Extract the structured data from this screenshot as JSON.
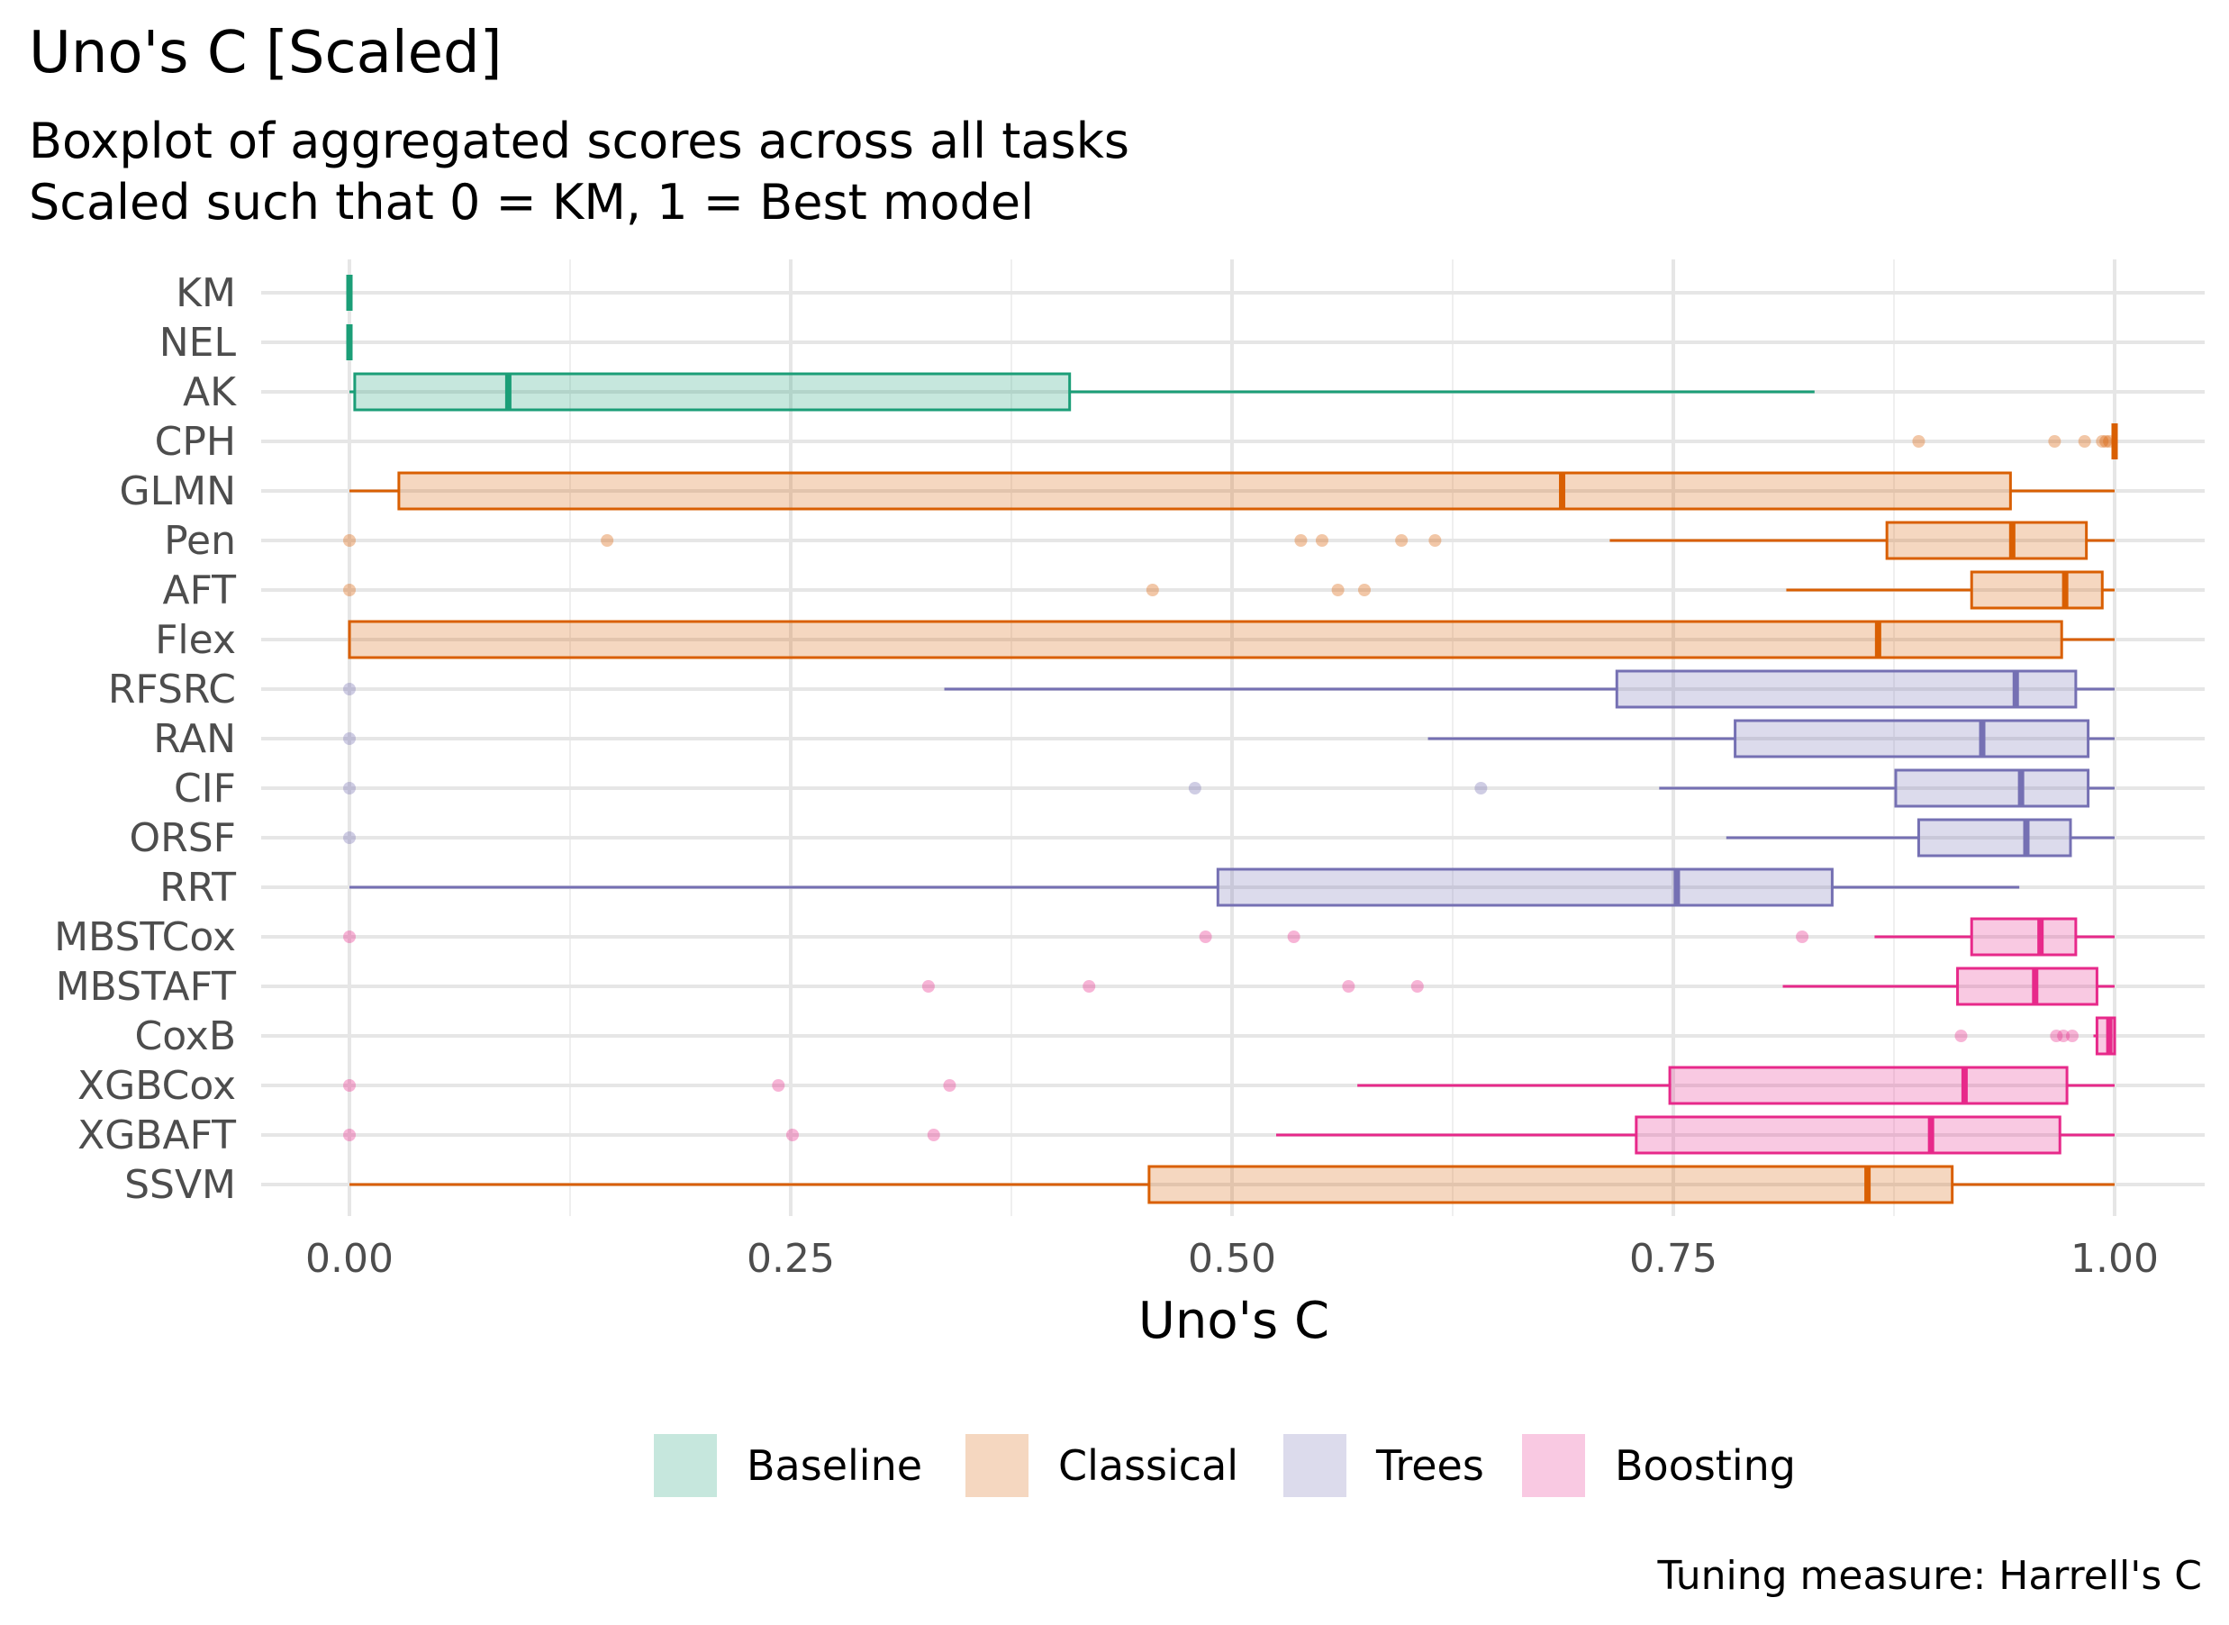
{
  "chart_data": {
    "type": "boxplot",
    "orientation": "horizontal",
    "title": "Uno's C [Scaled]",
    "subtitle_lines": [
      "Boxplot of aggregated scores across all tasks",
      "Scaled such that 0 = KM, 1 = Best model"
    ],
    "xlabel": "Uno's C",
    "ylabel": "",
    "caption": "Tuning measure: Harrell's C",
    "xlim": [
      -0.05,
      1.03
    ],
    "x_ticks": [
      0,
      0.25,
      0.5,
      0.75,
      1
    ],
    "x_tick_labels": [
      "0.00",
      "0.25",
      "0.50",
      "0.75",
      "1.00"
    ],
    "grid": true,
    "legend": {
      "position": "bottom",
      "entries": [
        {
          "label": "Baseline",
          "group": "Baseline"
        },
        {
          "label": "Classical",
          "group": "Classical"
        },
        {
          "label": "Trees",
          "group": "Trees"
        },
        {
          "label": "Boosting",
          "group": "Boosting"
        }
      ]
    },
    "group_colors": {
      "Baseline": "#1B9E77",
      "Classical": "#D95F02",
      "Trees": "#7570B3",
      "Boosting": "#E7298A"
    },
    "categories": [
      "KM",
      "NEL",
      "AK",
      "CPH",
      "GLMN",
      "Pen",
      "AFT",
      "Flex",
      "RFSRC",
      "RAN",
      "CIF",
      "ORSF",
      "RRT",
      "MBSTCox",
      "MBSTAFT",
      "CoxB",
      "XGBCox",
      "XGBAFT",
      "SSVM"
    ],
    "boxes": [
      {
        "name": "KM",
        "group": "Baseline",
        "whisker_low": 0,
        "q1": 0,
        "median": 0,
        "q3": 0,
        "whisker_high": 0,
        "outliers": []
      },
      {
        "name": "NEL",
        "group": "Baseline",
        "whisker_low": 0,
        "q1": 0,
        "median": 0,
        "q3": 0,
        "whisker_high": 0,
        "outliers": []
      },
      {
        "name": "AK",
        "group": "Baseline",
        "whisker_low": 0.0,
        "q1": 0.003,
        "median": 0.09,
        "q3": 0.408,
        "whisker_high": 0.83,
        "outliers": []
      },
      {
        "name": "CPH",
        "group": "Classical",
        "whisker_low": 1.0,
        "q1": 1.0,
        "median": 1.0,
        "q3": 1.0,
        "whisker_high": 1.0,
        "outliers": [
          0.889,
          0.966,
          0.983,
          0.993,
          0.995,
          0.997
        ]
      },
      {
        "name": "GLMN",
        "group": "Classical",
        "whisker_low": 0.0,
        "q1": 0.028,
        "median": 0.687,
        "q3": 0.941,
        "whisker_high": 1.0,
        "outliers": []
      },
      {
        "name": "Pen",
        "group": "Classical",
        "whisker_low": 0.714,
        "q1": 0.871,
        "median": 0.942,
        "q3": 0.984,
        "whisker_high": 1.0,
        "outliers": [
          0.0,
          0.146,
          0.539,
          0.551,
          0.596,
          0.615
        ]
      },
      {
        "name": "AFT",
        "group": "Classical",
        "whisker_low": 0.814,
        "q1": 0.919,
        "median": 0.972,
        "q3": 0.993,
        "whisker_high": 1.0,
        "outliers": [
          0.0,
          0.455,
          0.56,
          0.575
        ]
      },
      {
        "name": "Flex",
        "group": "Classical",
        "whisker_low": 0.0,
        "q1": 0.0,
        "median": 0.866,
        "q3": 0.97,
        "whisker_high": 1.0,
        "outliers": []
      },
      {
        "name": "RFSRC",
        "group": "Trees",
        "whisker_low": 0.337,
        "q1": 0.718,
        "median": 0.944,
        "q3": 0.978,
        "whisker_high": 1.0,
        "outliers": [
          0.0
        ]
      },
      {
        "name": "RAN",
        "group": "Trees",
        "whisker_low": 0.611,
        "q1": 0.785,
        "median": 0.925,
        "q3": 0.985,
        "whisker_high": 1.0,
        "outliers": [
          0.0
        ]
      },
      {
        "name": "CIF",
        "group": "Trees",
        "whisker_low": 0.742,
        "q1": 0.876,
        "median": 0.947,
        "q3": 0.985,
        "whisker_high": 1.0,
        "outliers": [
          0.0,
          0.479,
          0.641
        ]
      },
      {
        "name": "ORSF",
        "group": "Trees",
        "whisker_low": 0.78,
        "q1": 0.889,
        "median": 0.95,
        "q3": 0.975,
        "whisker_high": 1.0,
        "outliers": [
          0.0
        ]
      },
      {
        "name": "RRT",
        "group": "Trees",
        "whisker_low": 0.0,
        "q1": 0.492,
        "median": 0.752,
        "q3": 0.84,
        "whisker_high": 0.946,
        "outliers": []
      },
      {
        "name": "MBSTCox",
        "group": "Boosting",
        "whisker_low": 0.864,
        "q1": 0.919,
        "median": 0.958,
        "q3": 0.978,
        "whisker_high": 1.0,
        "outliers": [
          0.0,
          0.485,
          0.535,
          0.823
        ]
      },
      {
        "name": "MBSTAFT",
        "group": "Boosting",
        "whisker_low": 0.812,
        "q1": 0.911,
        "median": 0.955,
        "q3": 0.99,
        "whisker_high": 1.0,
        "outliers": [
          0.328,
          0.419,
          0.566,
          0.605
        ]
      },
      {
        "name": "CoxB",
        "group": "Boosting",
        "whisker_low": 0.988,
        "q1": 0.99,
        "median": 0.997,
        "q3": 1.0,
        "whisker_high": 1.0,
        "outliers": [
          0.913,
          0.967,
          0.971,
          0.976
        ]
      },
      {
        "name": "XGBCox",
        "group": "Boosting",
        "whisker_low": 0.571,
        "q1": 0.748,
        "median": 0.915,
        "q3": 0.973,
        "whisker_high": 1.0,
        "outliers": [
          0.0,
          0.243,
          0.34
        ]
      },
      {
        "name": "XGBAFT",
        "group": "Boosting",
        "whisker_low": 0.525,
        "q1": 0.729,
        "median": 0.896,
        "q3": 0.969,
        "whisker_high": 1.0,
        "outliers": [
          0.0,
          0.251,
          0.331
        ]
      },
      {
        "name": "SSVM",
        "group": "Classical",
        "whisker_low": 0.0,
        "q1": 0.453,
        "median": 0.86,
        "q3": 0.908,
        "whisker_high": 1.0,
        "outliers": []
      }
    ]
  }
}
